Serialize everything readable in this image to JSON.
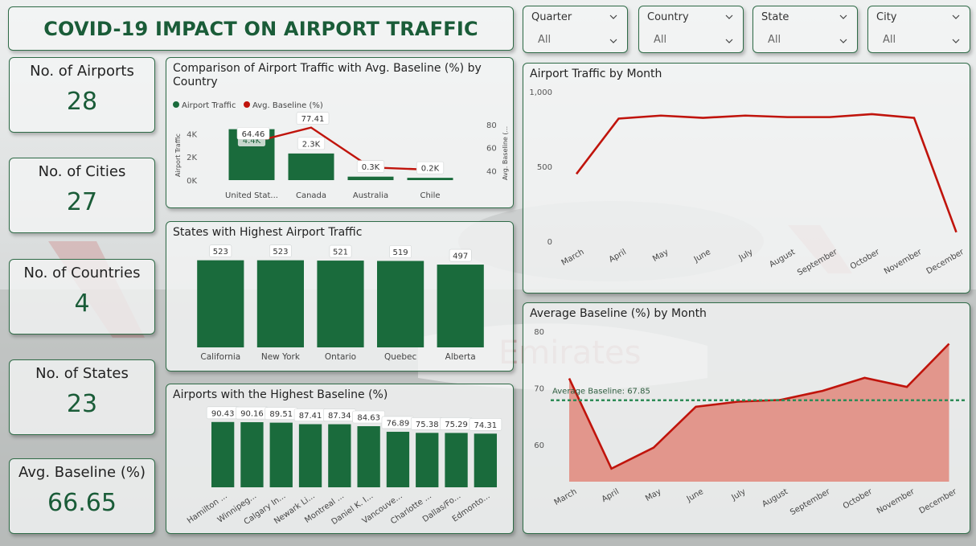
{
  "header": {
    "title": "COVID-19 IMPACT ON AIRPORT TRAFFIC"
  },
  "slicers": [
    {
      "label": "Quarter",
      "value": "All"
    },
    {
      "label": "Country",
      "value": "All"
    },
    {
      "label": "State",
      "value": "All"
    },
    {
      "label": "City",
      "value": "All"
    }
  ],
  "kpis": [
    {
      "label": "No. of Airports",
      "value": "28"
    },
    {
      "label": "No. of Cities",
      "value": "27"
    },
    {
      "label": "No. of Countries",
      "value": "4"
    },
    {
      "label": "No. of States",
      "value": "23"
    },
    {
      "label": "Avg. Baseline (%)",
      "value": "66.65"
    }
  ],
  "background": {
    "watermark": "Emirates"
  },
  "colors": {
    "bar": "#1a6b3c",
    "line": "#c0140c",
    "area": "#e07a6c",
    "ref": "#2e8b57"
  },
  "chart_data": [
    {
      "id": "comparison",
      "type": "bar",
      "title": "Comparison of Airport Traffic with Avg. Baseline (%) by Country",
      "legend": [
        "Airport Traffic",
        "Avg. Baseline (%)"
      ],
      "categories": [
        "United Stat...",
        "Canada",
        "Australia",
        "Chile"
      ],
      "series": [
        {
          "name": "Airport Traffic",
          "values": [
            4400,
            2300,
            300,
            200
          ],
          "labels": [
            "4.4K",
            "2.3K",
            "0.3K",
            "0.2K"
          ]
        },
        {
          "name": "Avg. Baseline (%)",
          "values": [
            64.46,
            77.41,
            43,
            41
          ],
          "labels": [
            "64.46",
            "77.41",
            "",
            ""
          ]
        }
      ],
      "ylabel": "Airport Traffic",
      "y2label": "Avg. Baseline (...",
      "yticks": [
        "0K",
        "2K",
        "4K"
      ],
      "y2ticks": [
        "40",
        "60",
        "80"
      ],
      "ylim": [
        0,
        5000
      ],
      "y2lim": [
        32,
        82
      ]
    },
    {
      "id": "states",
      "type": "bar",
      "title": "States with Highest Airport Traffic",
      "categories": [
        "California",
        "New York",
        "Ontario",
        "Quebec",
        "Alberta"
      ],
      "values": [
        523,
        523,
        521,
        519,
        497
      ],
      "labels": [
        "523",
        "523",
        "521",
        "519",
        "497"
      ],
      "ylim": [
        0,
        560
      ]
    },
    {
      "id": "airports",
      "type": "bar",
      "title": "Airports with the Highest Baseline (%)",
      "categories": [
        "Hamilton ...",
        "Winnipeg...",
        "Calgary In...",
        "Newark Li...",
        "Montreal ...",
        "Daniel K. I...",
        "Vancouve...",
        "Charlotte ...",
        "Dallas/Fo...",
        "Edmonto..."
      ],
      "values": [
        90.43,
        90.16,
        89.51,
        87.41,
        87.34,
        84.63,
        76.89,
        75.38,
        75.29,
        74.31
      ],
      "labels": [
        "90.43",
        "90.16",
        "89.51",
        "87.41",
        "87.34",
        "84.63",
        "76.89",
        "75.38",
        "75.29",
        "74.31"
      ],
      "ylim": [
        0,
        98
      ]
    },
    {
      "id": "traffic_month",
      "type": "line",
      "title": "Airport Traffic by Month",
      "x": [
        "March",
        "April",
        "May",
        "June",
        "July",
        "August",
        "September",
        "October",
        "November",
        "December"
      ],
      "values": [
        450,
        820,
        840,
        825,
        840,
        830,
        830,
        850,
        825,
        60
      ],
      "yticks": [
        "0",
        "500",
        "1,000"
      ],
      "ylim": [
        0,
        1000
      ]
    },
    {
      "id": "baseline_month",
      "type": "area",
      "title": "Average Baseline (%) by Month",
      "x": [
        "March",
        "April",
        "May",
        "June",
        "July",
        "August",
        "September",
        "October",
        "November",
        "December"
      ],
      "values": [
        71.7,
        55.8,
        59.5,
        66.7,
        67.6,
        67.9,
        69.5,
        71.8,
        70.2,
        77.8
      ],
      "reference": {
        "label": "Average Baseline: 67.85",
        "value": 67.85
      },
      "yticks": [
        "60",
        "70",
        "80"
      ],
      "ylim": [
        53.5,
        80
      ]
    }
  ]
}
